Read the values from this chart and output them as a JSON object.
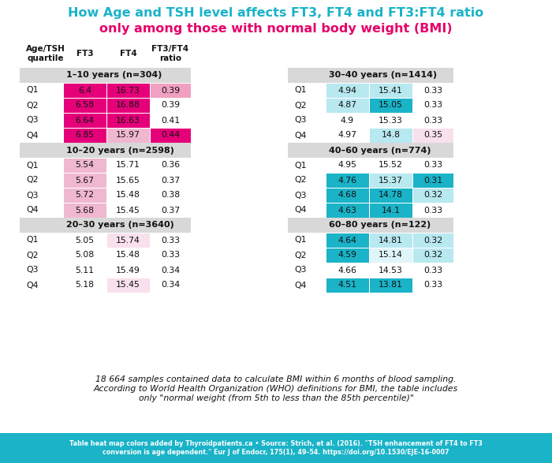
{
  "title_line1": "How Age and TSH level affects FT3, FT4 and FT3:FT4 ratio",
  "title_line2": "only among those with normal body weight (BMI)",
  "title_color1": "#1ab3c8",
  "title_color2": "#e5006a",
  "bg_color": "#f5f5f5",
  "footer_bg": "#1ab3c8",
  "footer_text": "Table heat map colors added by Thyroidpatients.ca • Source: Strich, et al. (2016). \"TSH enhancement of FT4 to FT3\nconversion is age dependent.\" Eur J of Endocr, 175(1), 49–54. https://doi.org/10.1530/EJE-16-0007",
  "note_text": "18 664 samples contained data to calculate BMI within 6 months of blood sampling.\nAccording to World Health Organization (WHO) definitions for BMI, the table includes\nonly \"normal weight (from 5th to less than the 85th percentile)\"",
  "header_bg": "#d8d8d8",
  "left_groups": [
    {
      "label": "1–10 years (n=304)",
      "rows": [
        {
          "q": "Q1",
          "ft3": "6.4",
          "ft4": "16.73",
          "ratio": "0.39",
          "ft3_color": "#e5007a",
          "ft4_color": "#e5007a",
          "ratio_color": "#f0a0c0"
        },
        {
          "q": "Q2",
          "ft3": "6.58",
          "ft4": "16.88",
          "ratio": "0.39",
          "ft3_color": "#e5007a",
          "ft4_color": "#e5007a",
          "ratio_color": null
        },
        {
          "q": "Q3",
          "ft3": "6.64",
          "ft4": "16.63",
          "ratio": "0.41",
          "ft3_color": "#e5007a",
          "ft4_color": "#e5007a",
          "ratio_color": null
        },
        {
          "q": "Q4",
          "ft3": "6.85",
          "ft4": "15.97",
          "ratio": "0.44",
          "ft3_color": "#e5007a",
          "ft4_color": "#f0b8d0",
          "ratio_color": "#e5007a"
        }
      ]
    },
    {
      "label": "10–20 years (n=2598)",
      "rows": [
        {
          "q": "Q1",
          "ft3": "5.54",
          "ft4": "15.71",
          "ratio": "0.36",
          "ft3_color": "#f0b8d0",
          "ft4_color": null,
          "ratio_color": null
        },
        {
          "q": "Q2",
          "ft3": "5.67",
          "ft4": "15.65",
          "ratio": "0.37",
          "ft3_color": "#f0b8d0",
          "ft4_color": null,
          "ratio_color": null
        },
        {
          "q": "Q3",
          "ft3": "5.72",
          "ft4": "15.48",
          "ratio": "0.38",
          "ft3_color": "#f0b8d0",
          "ft4_color": null,
          "ratio_color": null
        },
        {
          "q": "Q4",
          "ft3": "5.68",
          "ft4": "15.45",
          "ratio": "0.37",
          "ft3_color": "#f0b8d0",
          "ft4_color": null,
          "ratio_color": null
        }
      ]
    },
    {
      "label": "20–30 years (n=3640)",
      "rows": [
        {
          "q": "Q1",
          "ft3": "5.05",
          "ft4": "15.74",
          "ratio": "0.33",
          "ft3_color": null,
          "ft4_color": "#f8e0ec",
          "ratio_color": null
        },
        {
          "q": "Q2",
          "ft3": "5.08",
          "ft4": "15.48",
          "ratio": "0.33",
          "ft3_color": null,
          "ft4_color": null,
          "ratio_color": null
        },
        {
          "q": "Q3",
          "ft3": "5.11",
          "ft4": "15.49",
          "ratio": "0.34",
          "ft3_color": null,
          "ft4_color": null,
          "ratio_color": null
        },
        {
          "q": "Q4",
          "ft3": "5.18",
          "ft4": "15.45",
          "ratio": "0.34",
          "ft3_color": null,
          "ft4_color": "#f8e0ec",
          "ratio_color": null
        }
      ]
    }
  ],
  "right_groups": [
    {
      "label": "30–40 years (n=1414)",
      "rows": [
        {
          "q": "Q1",
          "ft3": "4.94",
          "ft4": "15.41",
          "ratio": "0.33",
          "ft3_color": "#b8e8f0",
          "ft4_color": "#b8e8f0",
          "ratio_color": null
        },
        {
          "q": "Q2",
          "ft3": "4.87",
          "ft4": "15.05",
          "ratio": "0.33",
          "ft3_color": "#b8e8f0",
          "ft4_color": "#1ab3c8",
          "ratio_color": null
        },
        {
          "q": "Q3",
          "ft3": "4.9",
          "ft4": "15.33",
          "ratio": "0.33",
          "ft3_color": null,
          "ft4_color": null,
          "ratio_color": null
        },
        {
          "q": "Q4",
          "ft3": "4.97",
          "ft4": "14.8",
          "ratio": "0.35",
          "ft3_color": null,
          "ft4_color": "#b8e8f0",
          "ratio_color": "#f8e0ec"
        }
      ]
    },
    {
      "label": "40–60 years (n=774)",
      "rows": [
        {
          "q": "Q1",
          "ft3": "4.95",
          "ft4": "15.52",
          "ratio": "0.33",
          "ft3_color": null,
          "ft4_color": null,
          "ratio_color": null
        },
        {
          "q": "Q2",
          "ft3": "4.76",
          "ft4": "15.37",
          "ratio": "0.31",
          "ft3_color": "#1ab3c8",
          "ft4_color": "#b8e8f0",
          "ratio_color": "#1ab3c8"
        },
        {
          "q": "Q3",
          "ft3": "4.68",
          "ft4": "14.78",
          "ratio": "0.32",
          "ft3_color": "#1ab3c8",
          "ft4_color": "#1ab3c8",
          "ratio_color": "#b8e8f0"
        },
        {
          "q": "Q4",
          "ft3": "4.63",
          "ft4": "14.1",
          "ratio": "0.33",
          "ft3_color": "#1ab3c8",
          "ft4_color": "#1ab3c8",
          "ratio_color": null
        }
      ]
    },
    {
      "label": "60–80 years (n=122)",
      "rows": [
        {
          "q": "Q1",
          "ft3": "4.64",
          "ft4": "14.81",
          "ratio": "0.32",
          "ft3_color": "#1ab3c8",
          "ft4_color": "#b8e8f0",
          "ratio_color": "#b8e8f0"
        },
        {
          "q": "Q2",
          "ft3": "4.59",
          "ft4": "15.14",
          "ratio": "0.32",
          "ft3_color": "#1ab3c8",
          "ft4_color": "#e0f5f8",
          "ratio_color": "#b8e8f0"
        },
        {
          "q": "Q3",
          "ft3": "4.66",
          "ft4": "14.53",
          "ratio": "0.33",
          "ft3_color": null,
          "ft4_color": null,
          "ratio_color": null
        },
        {
          "q": "Q4",
          "ft3": "4.51",
          "ft4": "13.81",
          "ratio": "0.33",
          "ft3_color": "#1ab3c8",
          "ft4_color": "#1ab3c8",
          "ratio_color": null
        }
      ]
    }
  ]
}
